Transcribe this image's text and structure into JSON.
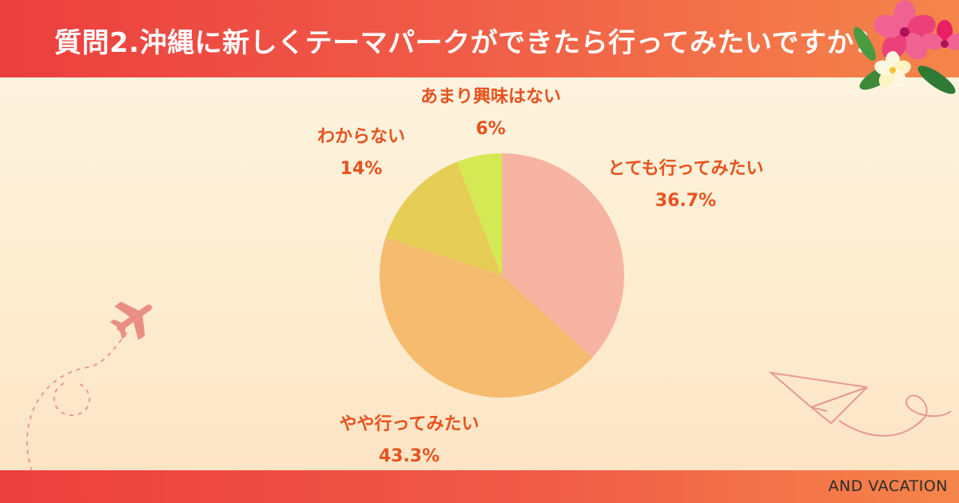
{
  "title": "質問2.沖縄に新しくテーマパークができたら行ってみたいですか？",
  "brand": "AND VACATION",
  "chart_data": {
    "type": "pie",
    "slices": [
      {
        "label": "とても行ってみたい",
        "value": 36.7,
        "value_label": "36.7%",
        "color": "#f7b4a2"
      },
      {
        "label": "やや行ってみたい",
        "value": 43.3,
        "value_label": "43.3%",
        "color": "#f5bb6f"
      },
      {
        "label": "わからない",
        "value": 14,
        "value_label": "14%",
        "color": "#e6cd55"
      },
      {
        "label": "あまり興味はない",
        "value": 6,
        "value_label": "6%",
        "color": "#d4ea55"
      }
    ]
  },
  "colors": {
    "header": "#ec3f3e",
    "label": "#e8521e",
    "background": "#fdf3e0"
  },
  "icons": [
    "hibiscus-flower-icon",
    "airplane-icon",
    "paper-plane-icon"
  ]
}
